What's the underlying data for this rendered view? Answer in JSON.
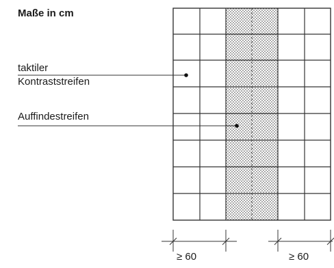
{
  "title": "Maße in cm",
  "labels": {
    "tactile_line1": "taktiler",
    "tactile_line2": "Kontraststreifen",
    "finder": "Auffindestreifen"
  },
  "dimensions": {
    "left": "≥ 60",
    "right": "≥ 60"
  }
}
